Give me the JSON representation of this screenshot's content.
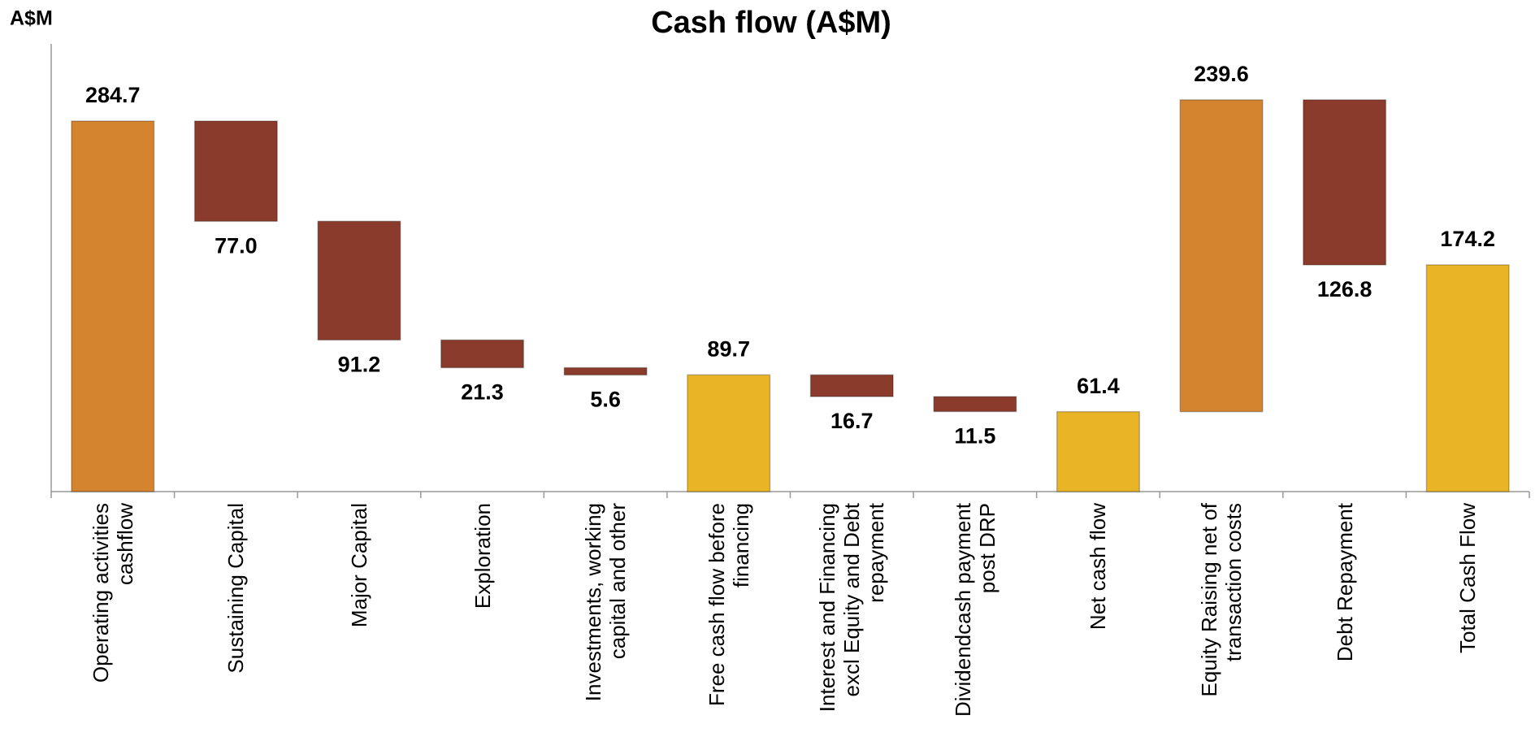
{
  "chart_data": {
    "type": "waterfall",
    "title": "Cash flow (A$M)",
    "y_label": "A$M",
    "categories": [
      "Operating activities cashflow",
      "Sustaining Capital",
      "Major Capital",
      "Exploration",
      "Investments, working capital and other",
      "Free cash flow before financing",
      "Interest and Financing excl Equity and Debt repayment",
      "Dividendcash payment post DRP",
      "Net cash flow",
      "Equity Raising net of transaction costs",
      "Debt Repayment",
      "Total Cash Flow"
    ],
    "values": [
      284.7,
      77.0,
      91.2,
      21.3,
      5.6,
      89.7,
      16.7,
      11.5,
      61.4,
      239.6,
      126.8,
      174.2
    ],
    "value_labels": [
      "284.7",
      "77.0",
      "91.2",
      "21.3",
      "5.6",
      "89.7",
      "16.7",
      "11.5",
      "61.4",
      "239.6",
      "126.8",
      "174.2"
    ],
    "measure": [
      "increase",
      "decrease",
      "decrease",
      "decrease",
      "decrease",
      "total",
      "decrease",
      "decrease",
      "total",
      "increase",
      "decrease",
      "total"
    ],
    "colors": {
      "increase": "#d4832f",
      "decrease": "#8a3b2b",
      "total": "#e9b526"
    },
    "ylim": [
      0,
      344
    ]
  }
}
